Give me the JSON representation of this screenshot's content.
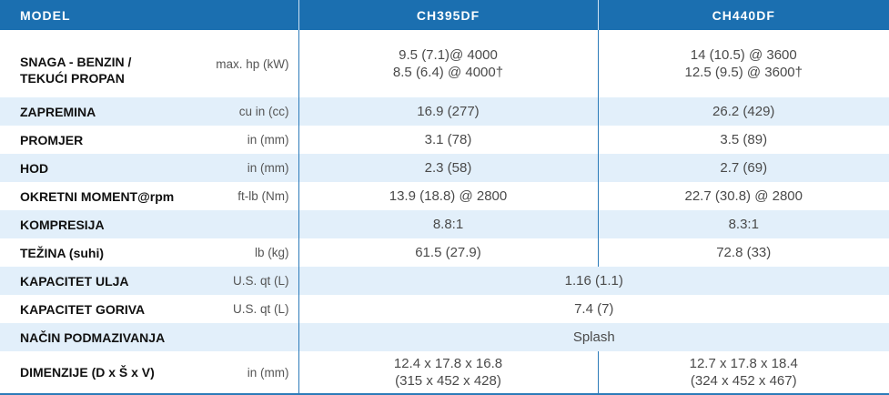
{
  "header": {
    "model": "MODEL",
    "columns": [
      "CH395DF",
      "CH440DF"
    ]
  },
  "rows": [
    {
      "label": [
        "SNAGA - BENZIN /",
        "TEKUĆI PROPAN"
      ],
      "unit": "max. hp (kW)",
      "values": [
        [
          "9.5 (7.1)@ 4000",
          "8.5 (6.4) @ 4000†"
        ],
        [
          "14 (10.5) @ 3600",
          "12.5 (9.5) @ 3600†"
        ]
      ]
    },
    {
      "label": [
        "ZAPREMINA"
      ],
      "unit": "cu in (cc)",
      "values": [
        [
          "16.9 (277)"
        ],
        [
          "26.2 (429)"
        ]
      ]
    },
    {
      "label": [
        "PROMJER"
      ],
      "unit": "in (mm)",
      "values": [
        [
          "3.1 (78)"
        ],
        [
          "3.5 (89)"
        ]
      ]
    },
    {
      "label": [
        "HOD"
      ],
      "unit": "in (mm)",
      "values": [
        [
          "2.3 (58)"
        ],
        [
          "2.7 (69)"
        ]
      ]
    },
    {
      "label": [
        "OKRETNI MOMENT@rpm"
      ],
      "unit": "ft-lb (Nm)",
      "values": [
        [
          "13.9 (18.8) @ 2800"
        ],
        [
          "22.7 (30.8) @ 2800"
        ]
      ]
    },
    {
      "label": [
        "KOMPRESIJA"
      ],
      "unit": null,
      "values": [
        [
          "8.8:1"
        ],
        [
          "8.3:1"
        ]
      ]
    },
    {
      "label": [
        "TEŽINA (suhi)"
      ],
      "unit": "lb (kg)",
      "values": [
        [
          "61.5 (27.9)"
        ],
        [
          "72.8 (33)"
        ]
      ]
    },
    {
      "label": [
        "KAPACITET ULJA"
      ],
      "unit": "U.S. qt (L)",
      "values": [
        [
          "1.16 (1.1)"
        ]
      ]
    },
    {
      "label": [
        "KAPACITET GORIVA"
      ],
      "unit": "U.S. qt (L)",
      "values": [
        [
          "7.4 (7)"
        ]
      ]
    },
    {
      "label": [
        "NAČIN PODMAZIVANJA"
      ],
      "unit": null,
      "values": [
        [
          "Splash"
        ]
      ]
    },
    {
      "label": [
        "DIMENZIJE (D x Š x V)"
      ],
      "unit": "in (mm)",
      "values": [
        [
          "12.4 x 17.8 x 16.8",
          "(315 x 452 x 428)"
        ],
        [
          "12.7 x 17.8 x 18.4",
          "(324 x 452 x 467)"
        ]
      ]
    }
  ]
}
